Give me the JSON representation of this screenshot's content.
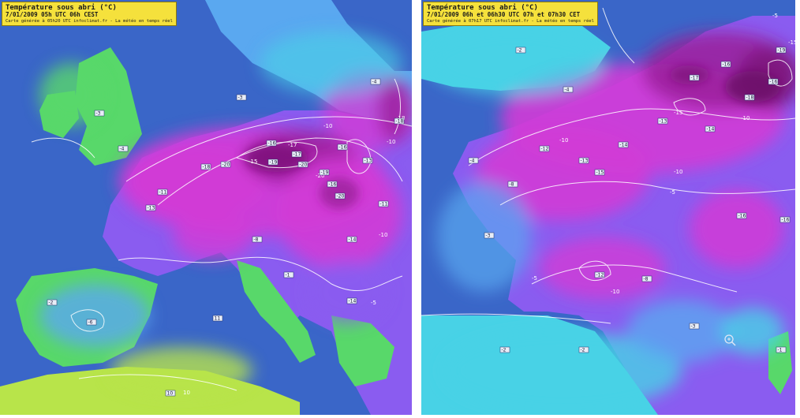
{
  "maps": [
    {
      "title": "Température sous abri (°C)",
      "date_line": "7/01/2009  05h UTC  06h CEST",
      "credit_line": "Carte générée à 05h20 UTC   infoclimat.fr - La météo en temps réel"
    },
    {
      "title": "Température sous abri (°C)",
      "date_line": "7/01/2009  06h et 06h30 UTC  07h et 07h30 CET",
      "credit_line": "Carte générée à 07h17 UTC   infoclimat.fr - La météo en temps réel"
    }
  ],
  "colors": {
    "sea": "#3a66c8",
    "very_cold": "#9a1f9a",
    "cold": "#d23bd6",
    "cool": "#8a5cf0",
    "mild": "#5aa8f0",
    "cyan": "#48d2e6",
    "green": "#58d86a",
    "yellow_green": "#b8e44a",
    "infobox": "#f5e13c"
  }
}
